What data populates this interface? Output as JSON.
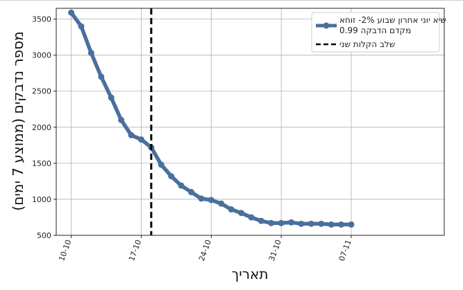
{
  "chart_data": {
    "type": "line",
    "xlabel": "תאריך",
    "ylabel": "מספר נדבקים (ממוצע 7 ימים)",
    "ylim": [
      500,
      3650
    ],
    "xlim": [
      -1.5,
      37.3
    ],
    "yticks": [
      500,
      1000,
      1500,
      2000,
      2500,
      3000,
      3500
    ],
    "xticks": [
      {
        "pos": 0,
        "label": "10-10"
      },
      {
        "pos": 7,
        "label": "17-10"
      },
      {
        "pos": 14,
        "label": "24-10"
      },
      {
        "pos": 21,
        "label": "31-10"
      },
      {
        "pos": 28,
        "label": "07-11"
      }
    ],
    "grid": true,
    "legend_position": "top-right",
    "series": [
      {
        "name": "שיא יוני אחרון שבוע 2%- זוחא\n0.99 מקדם הדבקה",
        "color": "#4a6f9c",
        "x": [
          0,
          1,
          2,
          3,
          4,
          5,
          6,
          7,
          8,
          9,
          10,
          11,
          12,
          13,
          14,
          15,
          16,
          17,
          18,
          19,
          20,
          21,
          22,
          23,
          24,
          25,
          26,
          27,
          28
        ],
        "values": [
          3590,
          3400,
          3030,
          2700,
          2410,
          2100,
          1890,
          1830,
          1720,
          1480,
          1320,
          1190,
          1100,
          1010,
          990,
          940,
          860,
          810,
          750,
          700,
          670,
          670,
          680,
          660,
          660,
          660,
          650,
          650,
          650
        ]
      }
    ],
    "annotations": [
      {
        "type": "vline",
        "x": 8,
        "label": "שלב הקלות שני",
        "color": "#000000"
      }
    ]
  }
}
